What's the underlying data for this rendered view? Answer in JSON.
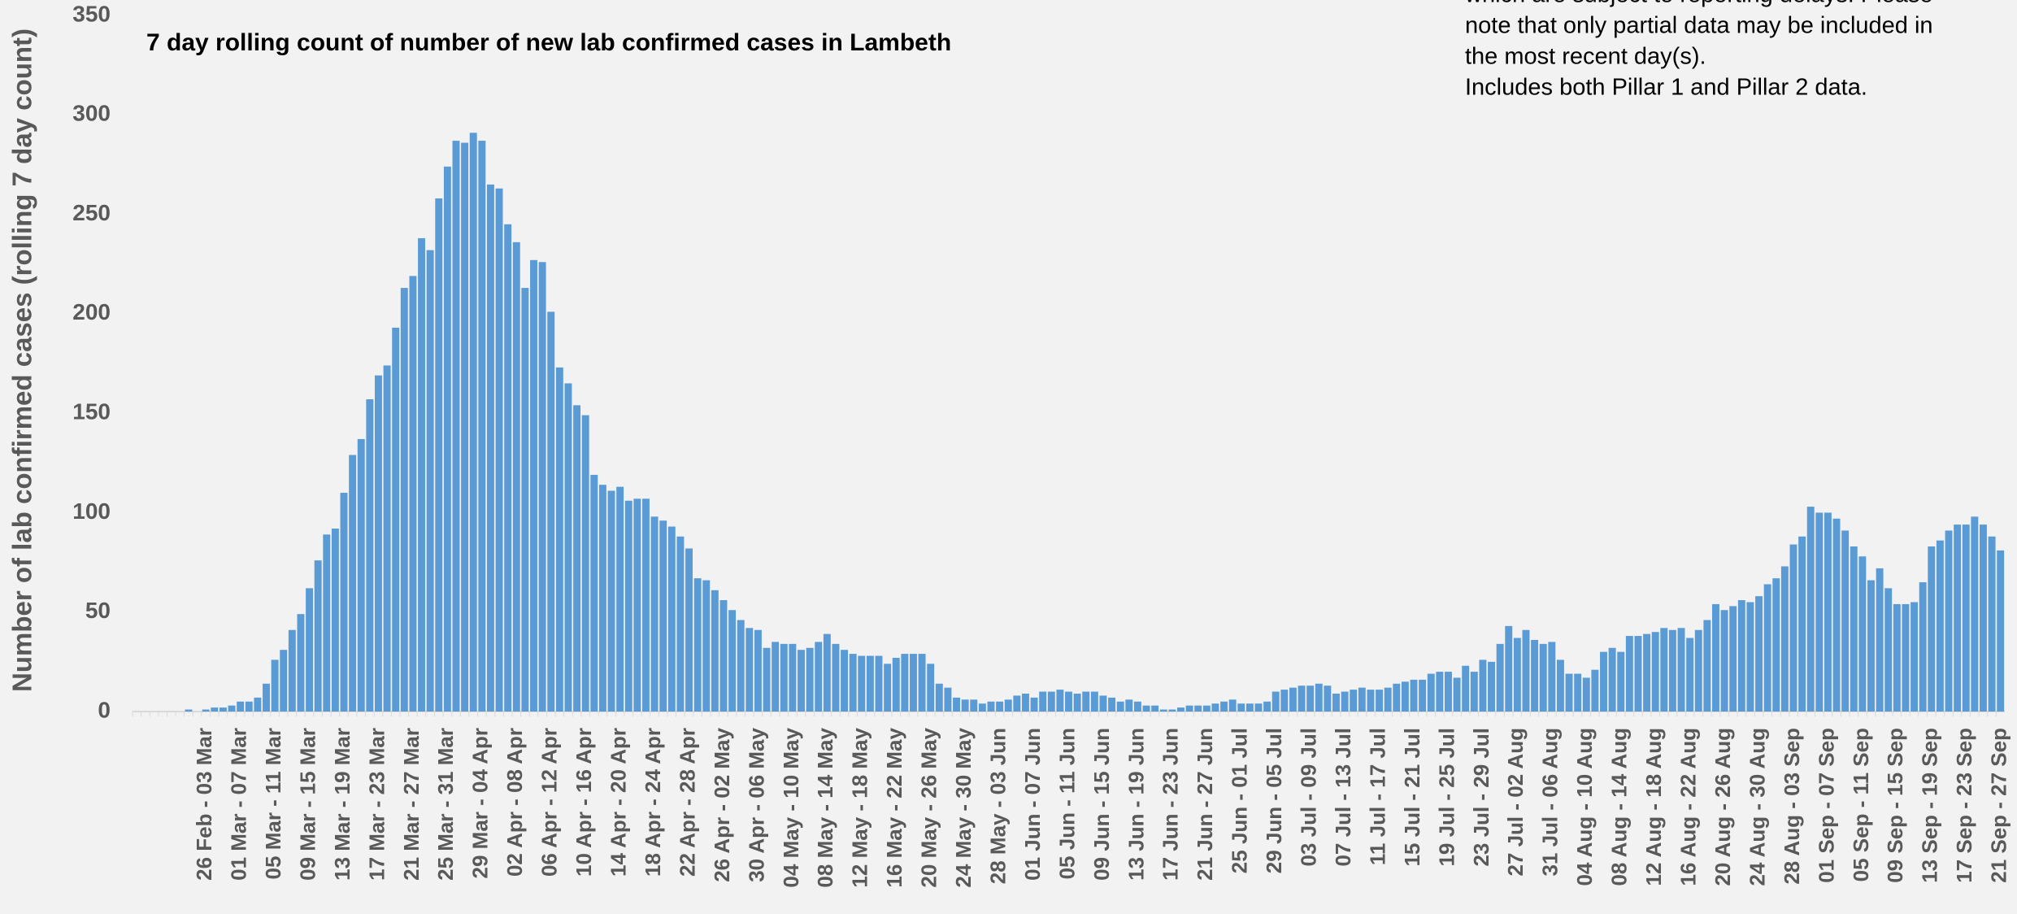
{
  "chart_data": {
    "type": "bar",
    "title": "7 day rolling count of number of new lab confirmed cases in Lambeth",
    "y_label": "Number of lab confirmed cases (rolling 7 day count)",
    "annotations": [
      "which are subject to reporting delays. Please",
      "note that only partial data may be included in",
      "the most recent day(s).",
      "Includes both Pillar 1 and Pillar 2 data."
    ],
    "color": "#5b9bd5",
    "grid": false,
    "ylim": [
      0,
      350
    ],
    "yticks": [
      0,
      50,
      100,
      150,
      200,
      250,
      300,
      350
    ],
    "categories": [
      null,
      null,
      null,
      null,
      null,
      null,
      null,
      null,
      "26 Feb - 03 Mar",
      null,
      null,
      null,
      "01 Mar - 07 Mar",
      null,
      null,
      null,
      "05 Mar - 11 Mar",
      null,
      null,
      null,
      "09 Mar - 15 Mar",
      null,
      null,
      null,
      "13 Mar - 19 Mar",
      null,
      null,
      null,
      "17 Mar - 23 Mar",
      null,
      null,
      null,
      "21 Mar - 27 Mar",
      null,
      null,
      null,
      "25 Mar - 31 Mar",
      null,
      null,
      null,
      "29 Mar - 04 Apr",
      null,
      null,
      null,
      "02 Apr - 08 Apr",
      null,
      null,
      null,
      "06 Apr - 12 Apr",
      null,
      null,
      null,
      "10 Apr - 16 Apr",
      null,
      null,
      null,
      "14 Apr - 20 Apr",
      null,
      null,
      null,
      "18 Apr - 24 Apr",
      null,
      null,
      null,
      "22 Apr - 28 Apr",
      null,
      null,
      null,
      "26 Apr - 02 May",
      null,
      null,
      null,
      "30 Apr - 06 May",
      null,
      null,
      null,
      "04 May - 10 May",
      null,
      null,
      null,
      "08 May - 14 May",
      null,
      null,
      null,
      "12 May - 18 May",
      null,
      null,
      null,
      "16 May - 22 May",
      null,
      null,
      null,
      "20 May - 26 May",
      null,
      null,
      null,
      "24 May - 30 May",
      null,
      null,
      null,
      "28 May - 03 Jun",
      null,
      null,
      null,
      "01 Jun - 07 Jun",
      null,
      null,
      null,
      "05 Jun - 11 Jun",
      null,
      null,
      null,
      "09 Jun - 15 Jun",
      null,
      null,
      null,
      "13 Jun - 19 Jun",
      null,
      null,
      null,
      "17 Jun - 23 Jun",
      null,
      null,
      null,
      "21 Jun - 27 Jun",
      null,
      null,
      null,
      "25 Jun - 01 Jul",
      null,
      null,
      null,
      "29 Jun - 05 Jul",
      null,
      null,
      null,
      "03 Jul - 09 Jul",
      null,
      null,
      null,
      "07 Jul - 13 Jul",
      null,
      null,
      null,
      "11 Jul - 17 Jul",
      null,
      null,
      null,
      "15 Jul - 21 Jul",
      null,
      null,
      null,
      "19 Jul - 25 Jul",
      null,
      null,
      null,
      "23 Jul - 29 Jul",
      null,
      null,
      null,
      "27 Jul - 02 Aug",
      null,
      null,
      null,
      "31 Jul - 06 Aug",
      null,
      null,
      null,
      "04 Aug - 10 Aug",
      null,
      null,
      null,
      "08 Aug - 14 Aug",
      null,
      null,
      null,
      "12 Aug - 18 Aug",
      null,
      null,
      null,
      "16 Aug - 22 Aug",
      null,
      null,
      null,
      "20 Aug - 26 Aug",
      null,
      null,
      null,
      "24 Aug - 30 Aug",
      null,
      null,
      null,
      "28 Aug - 03 Sep",
      null,
      null,
      null,
      "01 Sep - 07 Sep",
      null,
      null,
      null,
      "05 Sep - 11 Sep",
      null,
      null,
      null,
      "09 Sep - 15 Sep",
      null,
      null,
      null,
      "13 Sep - 19 Sep",
      null,
      null,
      null,
      "17 Sep - 23 Sep",
      null,
      null,
      null,
      "21 Sep - 27 Sep"
    ],
    "values": [
      0,
      0,
      0,
      0,
      0,
      0,
      1,
      0,
      1,
      2,
      2,
      3,
      5,
      5,
      7,
      14,
      26,
      31,
      41,
      49,
      62,
      76,
      89,
      92,
      110,
      129,
      137,
      157,
      169,
      174,
      193,
      213,
      219,
      238,
      232,
      258,
      274,
      287,
      286,
      291,
      287,
      265,
      263,
      245,
      236,
      213,
      227,
      226,
      201,
      173,
      165,
      154,
      149,
      119,
      114,
      111,
      113,
      106,
      107,
      107,
      98,
      96,
      93,
      88,
      82,
      67,
      66,
      61,
      56,
      51,
      46,
      42,
      41,
      32,
      35,
      34,
      34,
      31,
      32,
      35,
      39,
      34,
      31,
      29,
      28,
      28,
      28,
      24,
      27,
      29,
      29,
      29,
      24,
      14,
      12,
      7,
      6,
      6,
      4,
      5,
      5,
      6,
      8,
      9,
      7,
      10,
      10,
      11,
      10,
      9,
      10,
      10,
      8,
      7,
      5,
      6,
      5,
      3,
      3,
      1,
      1,
      2,
      3,
      3,
      3,
      4,
      5,
      6,
      4,
      4,
      4,
      5,
      10,
      11,
      12,
      13,
      13,
      14,
      13,
      9,
      10,
      11,
      12,
      11,
      11,
      12,
      14,
      15,
      16,
      16,
      19,
      20,
      20,
      17,
      23,
      20,
      26,
      25,
      34,
      43,
      37,
      41,
      36,
      34,
      35,
      26,
      19,
      19,
      17,
      21,
      30,
      32,
      30,
      38,
      38,
      39,
      40,
      42,
      41,
      42,
      37,
      41,
      46,
      54,
      51,
      53,
      56,
      55,
      58,
      64,
      67,
      73,
      84,
      88,
      103,
      100,
      100,
      97,
      91,
      83,
      78,
      66,
      72,
      62,
      54,
      54,
      55,
      65,
      83,
      86,
      91,
      94,
      94,
      98,
      94,
      88,
      81
    ]
  }
}
